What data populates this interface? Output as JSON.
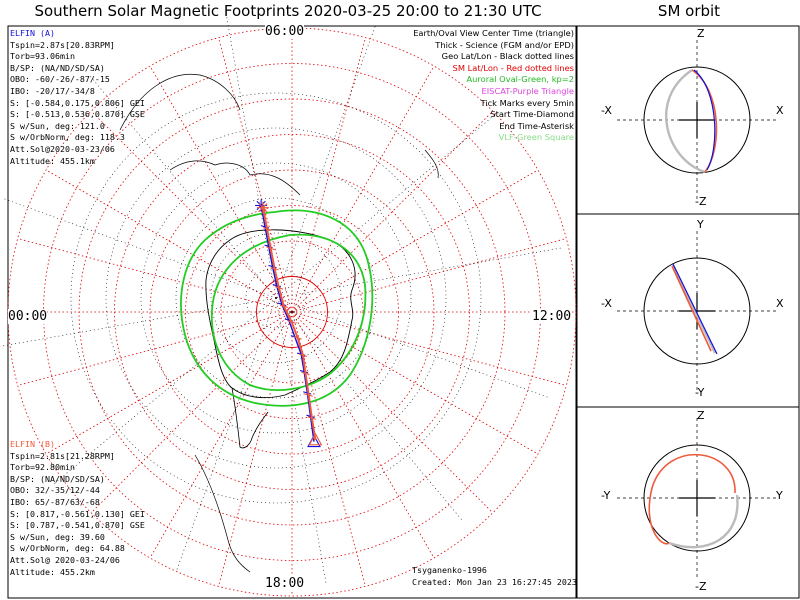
{
  "title": "Southern Solar Magnetic Footprints 2020-03-25 20:00 to 21:30 UTC",
  "side_title": "SM orbit",
  "mlt_labels": {
    "top": "06:00",
    "left": "00:00",
    "right": "12:00",
    "bottom": "18:00"
  },
  "elfin_a": {
    "name": "ELFIN (A)",
    "color": "#1010e0",
    "lines": [
      "Tspin=2.87s[20.83RPM]",
      "Torb=93.06min",
      "B/SP: (NA/ND/SD/SA)",
      "OBO: -60/-26/-87/-15",
      "IBO: -20/17/-34/8",
      "S: [-0.584,0.175,0.806] GEI",
      "S: [-0.513,0.536,0.870] GSE",
      "S w/Sun, deg: 121.0",
      "S w/OrbNorm, deg: 118.3",
      "Att.Sol@2020-03-23/06",
      "Altitude: 455.1km"
    ]
  },
  "elfin_b": {
    "name": "ELFIN (B)",
    "color": "#f05a3c",
    "lines": [
      "Tspin=2.81s[21.28RPM]",
      "Torb=92.80min",
      "B/SP: (NA/ND/SD/SA)",
      "OBO: 32/-35/12/-44",
      "IBO: 65/-87/63/-68",
      "S: [0.817,-0.561,0.130] GEI",
      "S: [0.787,-0.541,0.870] GSE",
      "S w/Sun, deg: 39.60",
      "S w/OrbNorm, deg: 64.88",
      "Att.Sol@ 2020-03-24/06",
      "Altitude: 455.2km"
    ]
  },
  "legend": [
    {
      "text": "Earth/Oval View Center Time (triangle)",
      "color": "#000000"
    },
    {
      "text": "Thick - Science (FGM and/or EPD)",
      "color": "#000000"
    },
    {
      "text": "Geo Lat/Lon - Black dotted lines",
      "color": "#000000"
    },
    {
      "text": "SM Lat/Lon - Red dotted lines",
      "color": "#e00000"
    },
    {
      "text": "Auroral Oval-Green, kp=2",
      "color": "#22bb22"
    },
    {
      "text": "EISCAT-Purple Triangle",
      "color": "#dd44dd"
    },
    {
      "text": "Tick Marks every 5min",
      "color": "#000000"
    },
    {
      "text": "Start Time-Diamond",
      "color": "#000000"
    },
    {
      "text": "End Time-Asterisk",
      "color": "#000000"
    },
    {
      "text": "VLF-Green Square",
      "color": "#88dd88"
    }
  ],
  "footer": {
    "credit": "Tsyganenko-1996",
    "created": "Created: Mon Jan 23 16:27:45 2023"
  },
  "panels": {
    "xz": {
      "top": "Z",
      "bottom": "-Z",
      "left": "-X",
      "right": "X"
    },
    "xy": {
      "top": "Y",
      "bottom": "-Y",
      "left": "-X",
      "right": "X"
    },
    "yz": {
      "top": "Z",
      "bottom": "-Z",
      "left": "-Y",
      "right": "Y"
    }
  },
  "chart_data": {
    "type": "scatter",
    "description_units": "polar SM projection, radius = 90 - |SM latitude| (deg), angle = MLT",
    "polar_rings_deg": [
      10,
      20,
      30,
      40,
      50,
      60,
      70,
      80
    ],
    "series": [
      {
        "name": "ELFIN (A)",
        "color": "#1010e0",
        "points": [
          [
            -8.7,
            -30.0
          ],
          [
            -7.6,
            -24.0
          ],
          [
            -6.6,
            -18.5
          ],
          [
            -5.5,
            -12.8
          ],
          [
            -4.3,
            -7.4
          ],
          [
            -2.9,
            -2.2
          ],
          [
            -0.9,
            2.3
          ],
          [
            0.8,
            7.0
          ],
          [
            2.6,
            11.9
          ],
          [
            3.4,
            16.8
          ],
          [
            4.3,
            22.8
          ],
          [
            5.2,
            29.4
          ],
          [
            6.2,
            36.5
          ]
        ]
      },
      {
        "name": "ELFIN (B)",
        "color": "#f05a3c",
        "points": [
          [
            -8.2,
            -29.4
          ],
          [
            -7.0,
            -23.4
          ],
          [
            -6.0,
            -17.9
          ],
          [
            -4.9,
            -12.2
          ],
          [
            -3.7,
            -6.8
          ],
          [
            -2.3,
            -1.6
          ],
          [
            -0.1,
            2.8
          ],
          [
            1.6,
            7.3
          ],
          [
            3.1,
            12.2
          ],
          [
            3.8,
            17.3
          ],
          [
            4.7,
            23.4
          ],
          [
            5.6,
            29.9
          ],
          [
            6.6,
            36.0
          ]
        ]
      }
    ],
    "auroral_oval_kp": 2,
    "end_marker": "asterisk",
    "center_marker": "triangle"
  }
}
